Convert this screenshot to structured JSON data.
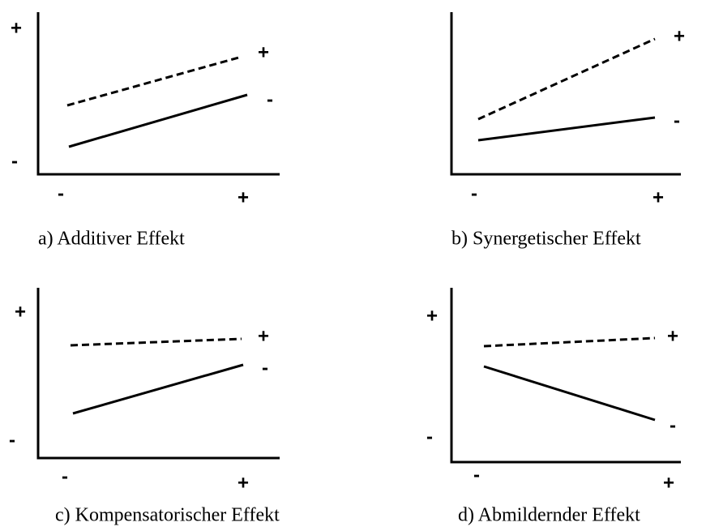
{
  "panels": [
    {
      "caption": "a) Additiver Effekt",
      "y_axis_labels": [
        "+",
        "-"
      ],
      "x_axis_labels": [
        "-",
        "+"
      ],
      "line_labels": [
        "+",
        "-"
      ]
    },
    {
      "caption": "b) Synergetischer Effekt",
      "y_axis_labels": [
        "+",
        "-"
      ],
      "x_axis_labels": [
        "-",
        "+"
      ],
      "line_labels": [
        "+",
        "-"
      ]
    },
    {
      "caption": "c) Kompensatorischer Effekt",
      "y_axis_labels": [
        "+",
        "-"
      ],
      "x_axis_labels": [
        "-",
        "+"
      ],
      "line_labels": [
        "+",
        "-"
      ]
    },
    {
      "caption": "d) Abmildernder Effekt",
      "y_axis_labels": [
        "+",
        "-"
      ],
      "x_axis_labels": [
        "-",
        "+"
      ],
      "line_labels": [
        "+",
        "-"
      ]
    }
  ]
}
